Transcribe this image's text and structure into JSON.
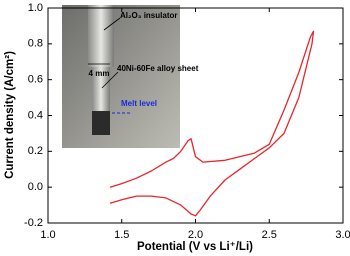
{
  "chart_data": {
    "type": "line",
    "xlabel": "Potential (V vs Li⁺/Li)",
    "ylabel": "Current density (A/cm²)",
    "xlim": [
      1.0,
      3.0
    ],
    "xticks": [
      {
        "value": 1.0,
        "label": "1.0"
      },
      1.5,
      {
        "value": 2.0,
        "label": "2.0"
      },
      2.5,
      {
        "value": 3.0,
        "label": "3.0"
      }
    ],
    "ylim": [
      -0.2,
      1.0
    ],
    "yticks": [
      -0.2,
      {
        "value": 0.0,
        "label": "0.0"
      },
      0.2,
      0.4,
      0.6,
      0.8,
      {
        "value": 1.0,
        "label": "1.0"
      }
    ],
    "grid": false,
    "series": [
      {
        "color": "#e8262a",
        "x": [
          1.42,
          1.5,
          1.6,
          1.7,
          1.8,
          1.85,
          1.9,
          1.95,
          1.97,
          2.0,
          2.05,
          2.2,
          2.4,
          2.5,
          2.6,
          2.7,
          2.78,
          2.8,
          2.79,
          2.7,
          2.6,
          2.5,
          2.4,
          2.3,
          2.2,
          2.1,
          2.03,
          2.0,
          1.97,
          1.9,
          1.8,
          1.7,
          1.6,
          1.5,
          1.42
        ],
        "values": [
          0.0,
          0.02,
          0.05,
          0.09,
          0.14,
          0.16,
          0.2,
          0.26,
          0.27,
          0.17,
          0.14,
          0.15,
          0.19,
          0.24,
          0.43,
          0.64,
          0.84,
          0.87,
          0.8,
          0.5,
          0.3,
          0.22,
          0.16,
          0.1,
          0.04,
          -0.05,
          -0.13,
          -0.16,
          -0.15,
          -0.1,
          -0.06,
          -0.05,
          -0.05,
          -0.07,
          -0.09
        ]
      }
    ],
    "annotations": [
      "Al₂O₃ insulator",
      "4 mm",
      "40Ni-60Fe alloy sheet",
      "Melt level"
    ]
  }
}
